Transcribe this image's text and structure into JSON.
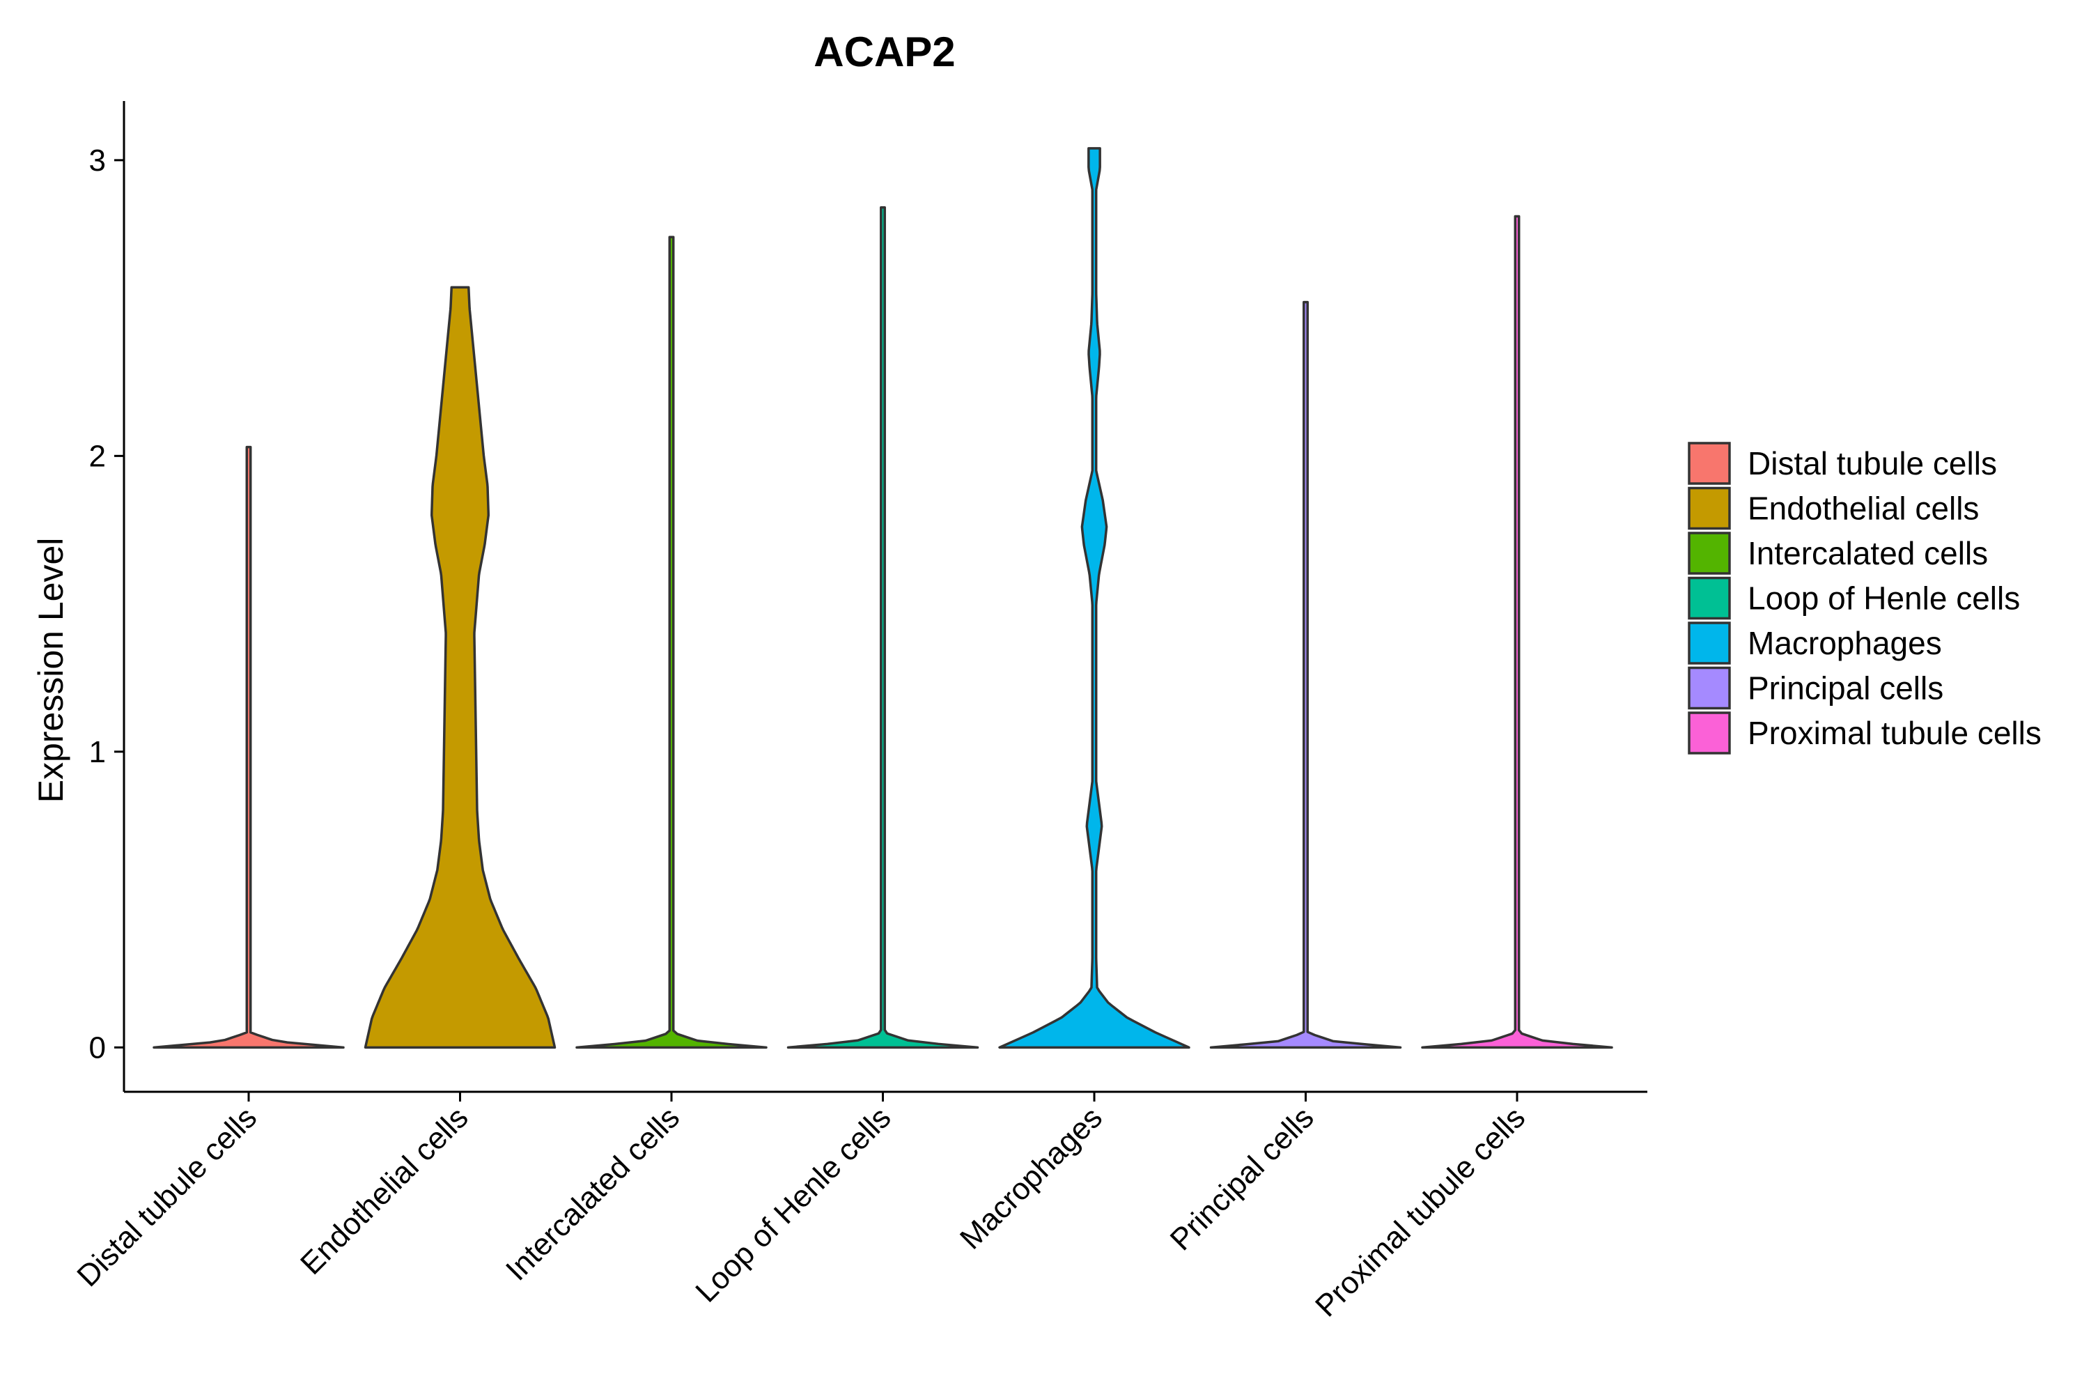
{
  "chart_data": {
    "type": "violin",
    "title": "ACAP2",
    "xlabel": "",
    "ylabel": "Expression Level",
    "ylim": [
      -0.15,
      3.2
    ],
    "yticks": [
      0,
      1,
      2,
      3
    ],
    "categories": [
      "Distal tubule cells",
      "Endothelial cells",
      "Intercalated cells",
      "Loop of Henle cells",
      "Macrophages",
      "Principal cells",
      "Proximal tubule cells"
    ],
    "series": [
      {
        "name": "Distal tubule cells",
        "color": "#F8766D",
        "max": 2.03,
        "density": [
          [
            0,
            1.0
          ],
          [
            0.02,
            0.3
          ],
          [
            0.05,
            0.02
          ],
          [
            2.03,
            0.02
          ]
        ]
      },
      {
        "name": "Endothelial cells",
        "color": "#C49A00",
        "max": 2.57,
        "density": [
          [
            0,
            1.0
          ],
          [
            0.1,
            0.93
          ],
          [
            0.2,
            0.8
          ],
          [
            0.3,
            0.62
          ],
          [
            0.4,
            0.45
          ],
          [
            0.5,
            0.32
          ],
          [
            0.6,
            0.24
          ],
          [
            0.7,
            0.2
          ],
          [
            0.8,
            0.18
          ],
          [
            1.0,
            0.17
          ],
          [
            1.2,
            0.16
          ],
          [
            1.4,
            0.15
          ],
          [
            1.6,
            0.2
          ],
          [
            1.7,
            0.26
          ],
          [
            1.8,
            0.3
          ],
          [
            1.9,
            0.29
          ],
          [
            2.0,
            0.25
          ],
          [
            2.2,
            0.19
          ],
          [
            2.4,
            0.13
          ],
          [
            2.5,
            0.1
          ],
          [
            2.57,
            0.09
          ]
        ]
      },
      {
        "name": "Intercalated cells",
        "color": "#53B400",
        "max": 2.74,
        "density": [
          [
            0,
            1.0
          ],
          [
            0.02,
            0.3
          ],
          [
            0.05,
            0.02
          ],
          [
            2.74,
            0.02
          ]
        ]
      },
      {
        "name": "Loop of Henle cells",
        "color": "#00C094",
        "max": 2.84,
        "density": [
          [
            0,
            1.0
          ],
          [
            0.02,
            0.3
          ],
          [
            0.05,
            0.02
          ],
          [
            2.84,
            0.02
          ]
        ]
      },
      {
        "name": "Macrophages",
        "color": "#00B6EB",
        "max": 3.04,
        "density": [
          [
            0,
            1.0
          ],
          [
            0.05,
            0.65
          ],
          [
            0.1,
            0.35
          ],
          [
            0.15,
            0.15
          ],
          [
            0.2,
            0.03
          ],
          [
            0.3,
            0.02
          ],
          [
            0.6,
            0.02
          ],
          [
            0.7,
            0.06
          ],
          [
            0.75,
            0.08
          ],
          [
            0.8,
            0.06
          ],
          [
            0.9,
            0.02
          ],
          [
            1.5,
            0.02
          ],
          [
            1.6,
            0.05
          ],
          [
            1.7,
            0.11
          ],
          [
            1.76,
            0.13
          ],
          [
            1.85,
            0.09
          ],
          [
            1.95,
            0.02
          ],
          [
            2.2,
            0.02
          ],
          [
            2.3,
            0.05
          ],
          [
            2.35,
            0.06
          ],
          [
            2.45,
            0.03
          ],
          [
            2.55,
            0.02
          ],
          [
            2.9,
            0.02
          ],
          [
            2.97,
            0.06
          ],
          [
            3.04,
            0.06
          ]
        ]
      },
      {
        "name": "Principal cells",
        "color": "#A58AFF",
        "max": 2.52,
        "density": [
          [
            0,
            1.0
          ],
          [
            0.02,
            0.3
          ],
          [
            0.05,
            0.02
          ],
          [
            2.52,
            0.02
          ]
        ]
      },
      {
        "name": "Proximal tubule cells",
        "color": "#FB61D7",
        "max": 2.81,
        "density": [
          [
            0,
            1.0
          ],
          [
            0.02,
            0.3
          ],
          [
            0.05,
            0.02
          ],
          [
            2.81,
            0.02
          ]
        ]
      }
    ],
    "legend": {
      "position": "right",
      "items": [
        {
          "label": "Distal tubule cells",
          "color": "#F8766D"
        },
        {
          "label": "Endothelial cells",
          "color": "#C49A00"
        },
        {
          "label": "Intercalated cells",
          "color": "#53B400"
        },
        {
          "label": "Loop of Henle cells",
          "color": "#00C094"
        },
        {
          "label": "Macrophages",
          "color": "#00B6EB"
        },
        {
          "label": "Principal cells",
          "color": "#A58AFF"
        },
        {
          "label": "Proximal tubule cells",
          "color": "#FB61D7"
        }
      ]
    }
  }
}
